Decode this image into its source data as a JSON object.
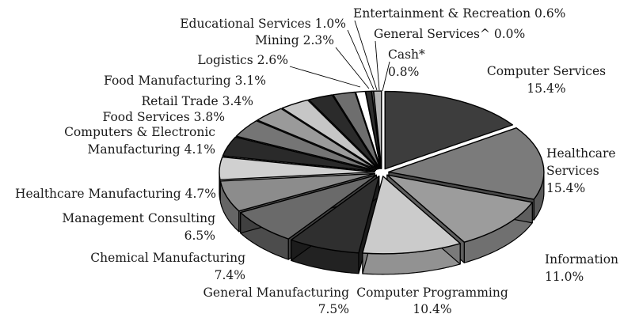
{
  "chart_data": {
    "type": "pie",
    "style": "3d-exploded",
    "title": "",
    "legend": "none",
    "slices": [
      {
        "label": "Computer Services",
        "value_label": "15.4%",
        "value": 15.4,
        "color": "#3d3d3d"
      },
      {
        "label": "Healthcare Services",
        "value_label": "15.4%",
        "value": 15.4,
        "color": "#7b7b7b"
      },
      {
        "label": "Information",
        "value_label": "11.0%",
        "value": 11.0,
        "color": "#9c9c9c"
      },
      {
        "label": "Computer Programming",
        "value_label": "10.4%",
        "value": 10.4,
        "color": "#cbcbcb"
      },
      {
        "label": "General Manufacturing",
        "value_label": "7.5%",
        "value": 7.5,
        "color": "#2f2f2f"
      },
      {
        "label": "Chemical Manufacturing",
        "value_label": "7.4%",
        "value": 7.4,
        "color": "#6a6a6a"
      },
      {
        "label": "Management Consulting",
        "value_label": "6.5%",
        "value": 6.5,
        "color": "#8c8c8c"
      },
      {
        "label": "Healthcare Manufacturing",
        "value_label": "4.7%",
        "value": 4.7,
        "color": "#d0d0d0"
      },
      {
        "label": "Computers & Electronic Manufacturing",
        "value_label": "4.1%",
        "value": 4.1,
        "color": "#2a2a2a"
      },
      {
        "label": "Food Services",
        "value_label": "3.8%",
        "value": 3.8,
        "color": "#757575"
      },
      {
        "label": "Retail Trade",
        "value_label": "3.4%",
        "value": 3.4,
        "color": "#9a9a9a"
      },
      {
        "label": "Food Manufacturing",
        "value_label": "3.1%",
        "value": 3.1,
        "color": "#c6c6c6"
      },
      {
        "label": "Logistics",
        "value_label": "2.6%",
        "value": 2.6,
        "color": "#2b2b2b"
      },
      {
        "label": "Mining",
        "value_label": "2.3%",
        "value": 2.3,
        "color": "#6e6e6e"
      },
      {
        "label": "Educational Services",
        "value_label": "1.0%",
        "value": 1.0,
        "color": "#ffffff"
      },
      {
        "label": "Entertainment & Recreation",
        "value_label": "0.6%",
        "value": 0.6,
        "color": "#2f2f2f"
      },
      {
        "label": "General Services^",
        "value_label": "0.0%",
        "value": 0.0,
        "color": "#6a6a6a"
      },
      {
        "label": "Cash*",
        "value_label": "0.8%",
        "value": 0.8,
        "color": "#b4b4b4"
      }
    ],
    "labels": [
      {
        "lines": [
          "Computer Services 15.4%"
        ]
      },
      {
        "lines": [
          "Healthcare",
          "Services",
          "15.4%"
        ]
      },
      {
        "lines": [
          "Information",
          "11.0%"
        ]
      },
      {
        "lines": [
          "Computer Programming",
          "10.4%"
        ]
      },
      {
        "lines": [
          "General Manufacturing",
          "7.5%"
        ]
      },
      {
        "lines": [
          "Chemical Manufacturing",
          "7.4%"
        ]
      },
      {
        "lines": [
          "Management Consulting",
          "6.5%"
        ]
      },
      {
        "lines": [
          "Healthcare Manufacturing 4.7%"
        ]
      },
      {
        "lines": [
          "Computers & Electronic",
          "Manufacturing 4.1%"
        ]
      },
      {
        "lines": [
          "Food Services 3.8%"
        ]
      },
      {
        "lines": [
          "Retail Trade 3.4%"
        ]
      },
      {
        "lines": [
          "Food Manufacturing 3.1%"
        ]
      },
      {
        "lines": [
          "Logistics 2.6%"
        ]
      },
      {
        "lines": [
          "Mining 2.3%"
        ]
      },
      {
        "lines": [
          "Educational Services 1.0%"
        ]
      },
      {
        "lines": [
          "Entertainment & Recreation 0.6%"
        ]
      },
      {
        "lines": [
          "General Services^ 0.0%"
        ]
      },
      {
        "lines": [
          "Cash*",
          "0.8%"
        ]
      }
    ]
  }
}
